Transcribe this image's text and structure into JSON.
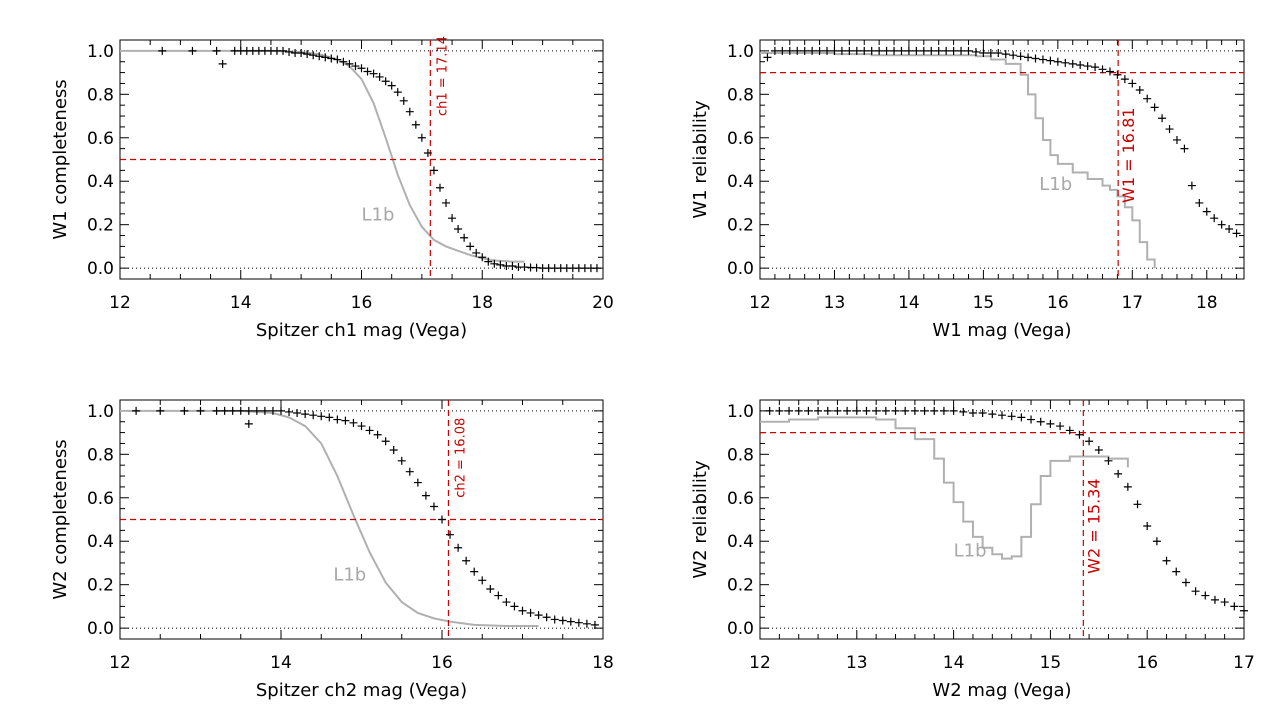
{
  "chart_data": [
    {
      "type": "scatter",
      "panel": "top-left",
      "xlabel": "Spitzer ch1 mag (Vega)",
      "ylabel": "W1 completeness",
      "xlim": [
        12,
        20
      ],
      "ylim": [
        -0.05,
        1.05
      ],
      "xticks": [
        12,
        14,
        16,
        18,
        20
      ],
      "yticks": [
        0.0,
        0.2,
        0.4,
        0.6,
        0.8,
        1.0
      ],
      "ref_lines": [
        0.0,
        1.0
      ],
      "threshold": {
        "axis": "y",
        "value": 0.5
      },
      "cut": {
        "value": 17.14,
        "label": "ch1 = 17.14",
        "label_pos": "top",
        "label_y": 0.7
      },
      "curve_label": {
        "text": "L1b",
        "x": 16.0,
        "y": 0.22
      },
      "curve": {
        "name": "L1b",
        "style": "line",
        "x": [
          12.0,
          14.5,
          15.0,
          15.3,
          15.6,
          15.8,
          16.0,
          16.2,
          16.4,
          16.6,
          16.8,
          17.0,
          17.2,
          17.4,
          17.6,
          17.8,
          18.0,
          18.2,
          18.5,
          18.7
        ],
        "y": [
          1.0,
          1.0,
          0.995,
          0.985,
          0.96,
          0.93,
          0.87,
          0.76,
          0.6,
          0.43,
          0.29,
          0.19,
          0.13,
          0.1,
          0.08,
          0.06,
          0.045,
          0.035,
          0.03,
          0.03
        ]
      },
      "series": [
        {
          "name": "counts",
          "style": "plus",
          "x": [
            12.7,
            13.2,
            13.6,
            13.7,
            13.9,
            14.0,
            14.1,
            14.2,
            14.3,
            14.4,
            14.5,
            14.6,
            14.7,
            14.8,
            14.9,
            15.0,
            15.1,
            15.2,
            15.3,
            15.4,
            15.5,
            15.6,
            15.7,
            15.8,
            15.9,
            16.0,
            16.1,
            16.2,
            16.3,
            16.4,
            16.5,
            16.6,
            16.7,
            16.8,
            16.9,
            17.0,
            17.1,
            17.2,
            17.3,
            17.4,
            17.5,
            17.6,
            17.7,
            17.8,
            17.9,
            18.0,
            18.1,
            18.2,
            18.3,
            18.4,
            18.5,
            18.6,
            18.7,
            18.8,
            18.9,
            19.0,
            19.1,
            19.2,
            19.3,
            19.4,
            19.5,
            19.6,
            19.7,
            19.8,
            19.9
          ],
          "y": [
            1.0,
            1.0,
            1.0,
            0.94,
            1.0,
            1.0,
            1.0,
            1.0,
            1.0,
            1.0,
            1.0,
            1.0,
            1.0,
            0.995,
            0.99,
            0.99,
            0.985,
            0.98,
            0.975,
            0.97,
            0.965,
            0.96,
            0.95,
            0.94,
            0.93,
            0.92,
            0.905,
            0.895,
            0.88,
            0.86,
            0.84,
            0.81,
            0.77,
            0.72,
            0.66,
            0.6,
            0.53,
            0.45,
            0.37,
            0.3,
            0.23,
            0.18,
            0.14,
            0.1,
            0.07,
            0.05,
            0.03,
            0.02,
            0.015,
            0.01,
            0.01,
            0.005,
            0.005,
            0.003,
            0.002,
            0.0,
            0.0,
            0.0,
            0.0,
            0.0,
            0.0,
            0.0,
            0.0,
            0.0,
            0.0
          ]
        }
      ]
    },
    {
      "type": "scatter",
      "panel": "top-right",
      "xlabel": "W1 mag (Vega)",
      "ylabel": "W1 reliability",
      "xlim": [
        12,
        18.5
      ],
      "ylim": [
        -0.05,
        1.05
      ],
      "xticks": [
        12,
        13,
        14,
        15,
        16,
        17,
        18
      ],
      "yticks": [
        0.0,
        0.2,
        0.4,
        0.6,
        0.8,
        1.0
      ],
      "ref_lines": [
        0.0,
        1.0
      ],
      "threshold": {
        "axis": "y",
        "value": 0.9
      },
      "cut": {
        "value": 16.81,
        "label": "W1 = 16.81",
        "label_pos": "bottom",
        "label_y": 0.3
      },
      "curve_label": {
        "text": "L1b",
        "x": 15.75,
        "y": 0.36
      },
      "curve": {
        "name": "L1b",
        "style": "step",
        "x": [
          12.0,
          12.5,
          13.0,
          13.5,
          14.0,
          14.5,
          14.9,
          15.1,
          15.3,
          15.5,
          15.6,
          15.7,
          15.8,
          15.9,
          16.0,
          16.2,
          16.4,
          16.6,
          16.7,
          16.8,
          16.9,
          17.0,
          17.1,
          17.2,
          17.3
        ],
        "y": [
          0.99,
          0.99,
          0.985,
          0.98,
          0.98,
          0.98,
          0.975,
          0.96,
          0.94,
          0.89,
          0.8,
          0.69,
          0.59,
          0.52,
          0.48,
          0.44,
          0.41,
          0.38,
          0.36,
          0.33,
          0.28,
          0.22,
          0.12,
          0.04,
          0.0
        ]
      },
      "series": [
        {
          "name": "counts",
          "style": "plus",
          "x": [
            12.1,
            12.2,
            12.3,
            12.4,
            12.5,
            12.6,
            12.7,
            12.8,
            12.9,
            13.0,
            13.1,
            13.2,
            13.3,
            13.4,
            13.5,
            13.6,
            13.7,
            13.8,
            13.9,
            14.0,
            14.1,
            14.2,
            14.3,
            14.4,
            14.5,
            14.6,
            14.7,
            14.8,
            14.9,
            15.0,
            15.1,
            15.2,
            15.3,
            15.4,
            15.5,
            15.6,
            15.7,
            15.8,
            15.9,
            16.0,
            16.1,
            16.2,
            16.3,
            16.4,
            16.5,
            16.6,
            16.7,
            16.8,
            16.9,
            17.0,
            17.1,
            17.2,
            17.3,
            17.4,
            17.5,
            17.6,
            17.7,
            17.8,
            17.9,
            18.0,
            18.1,
            18.2,
            18.3,
            18.4
          ],
          "y": [
            0.97,
            1.0,
            1.0,
            1.0,
            1.0,
            1.0,
            1.0,
            1.0,
            1.0,
            1.0,
            1.0,
            1.0,
            1.0,
            1.0,
            1.0,
            1.0,
            1.0,
            1.0,
            1.0,
            1.0,
            1.0,
            1.0,
            1.0,
            1.0,
            1.0,
            1.0,
            1.0,
            1.0,
            0.995,
            0.99,
            0.99,
            0.99,
            0.985,
            0.98,
            0.975,
            0.97,
            0.965,
            0.96,
            0.955,
            0.95,
            0.945,
            0.94,
            0.935,
            0.93,
            0.925,
            0.915,
            0.905,
            0.89,
            0.87,
            0.85,
            0.82,
            0.78,
            0.74,
            0.69,
            0.64,
            0.59,
            0.55,
            0.38,
            0.3,
            0.26,
            0.23,
            0.2,
            0.18,
            0.16
          ]
        }
      ]
    },
    {
      "type": "scatter",
      "panel": "bottom-left",
      "xlabel": "Spitzer ch2 mag (Vega)",
      "ylabel": "W2 completeness",
      "xlim": [
        12,
        18
      ],
      "ylim": [
        -0.05,
        1.05
      ],
      "xticks": [
        12,
        14,
        16,
        18
      ],
      "yticks": [
        0.0,
        0.2,
        0.4,
        0.6,
        0.8,
        1.0
      ],
      "ref_lines": [
        0.0,
        1.0
      ],
      "threshold": {
        "axis": "y",
        "value": 0.5
      },
      "cut": {
        "value": 16.08,
        "label": "ch2 = 16.08",
        "label_pos": "top",
        "label_y": 0.6
      },
      "curve_label": {
        "text": "L1b",
        "x": 14.65,
        "y": 0.22
      },
      "curve": {
        "name": "L1b",
        "style": "line",
        "x": [
          12.0,
          13.5,
          13.9,
          14.1,
          14.3,
          14.5,
          14.7,
          14.9,
          15.1,
          15.3,
          15.5,
          15.7,
          15.9,
          16.1,
          16.4,
          16.8,
          17.2
        ],
        "y": [
          1.0,
          1.0,
          0.99,
          0.97,
          0.93,
          0.85,
          0.7,
          0.52,
          0.35,
          0.21,
          0.12,
          0.07,
          0.045,
          0.03,
          0.015,
          0.01,
          0.01
        ]
      },
      "series": [
        {
          "name": "counts",
          "style": "plus",
          "x": [
            12.2,
            12.5,
            12.8,
            13.0,
            13.2,
            13.3,
            13.4,
            13.5,
            13.6,
            13.6,
            13.7,
            13.8,
            13.9,
            14.0,
            14.1,
            14.2,
            14.3,
            14.4,
            14.5,
            14.6,
            14.7,
            14.8,
            14.9,
            15.0,
            15.1,
            15.2,
            15.3,
            15.4,
            15.5,
            15.6,
            15.7,
            15.8,
            15.9,
            16.0,
            16.1,
            16.2,
            16.3,
            16.4,
            16.5,
            16.6,
            16.7,
            16.8,
            16.9,
            17.0,
            17.1,
            17.2,
            17.3,
            17.4,
            17.5,
            17.6,
            17.7,
            17.8,
            17.9
          ],
          "y": [
            1.0,
            1.0,
            1.0,
            1.0,
            1.0,
            1.0,
            1.0,
            1.0,
            1.0,
            0.94,
            1.0,
            1.0,
            1.0,
            1.0,
            0.995,
            0.99,
            0.985,
            0.98,
            0.975,
            0.97,
            0.96,
            0.955,
            0.945,
            0.93,
            0.91,
            0.89,
            0.86,
            0.82,
            0.77,
            0.72,
            0.67,
            0.61,
            0.56,
            0.5,
            0.43,
            0.37,
            0.31,
            0.26,
            0.22,
            0.18,
            0.15,
            0.12,
            0.1,
            0.08,
            0.07,
            0.06,
            0.05,
            0.04,
            0.035,
            0.03,
            0.025,
            0.02,
            0.015
          ]
        }
      ]
    },
    {
      "type": "scatter",
      "panel": "bottom-right",
      "xlabel": "W2 mag (Vega)",
      "ylabel": "W2 reliability",
      "xlim": [
        12,
        17
      ],
      "ylim": [
        -0.05,
        1.05
      ],
      "xticks": [
        12,
        13,
        14,
        15,
        16,
        17
      ],
      "yticks": [
        0.0,
        0.2,
        0.4,
        0.6,
        0.8,
        1.0
      ],
      "ref_lines": [
        0.0,
        1.0
      ],
      "threshold": {
        "axis": "y",
        "value": 0.9
      },
      "cut": {
        "value": 15.34,
        "label": "W2 = 15.34",
        "label_pos": "bottom",
        "label_y": 0.25
      },
      "curve_label": {
        "text": "L1b",
        "x": 14.0,
        "y": 0.33
      },
      "curve": {
        "name": "L1b",
        "style": "step",
        "x": [
          12.0,
          12.3,
          12.6,
          12.9,
          13.2,
          13.4,
          13.6,
          13.8,
          13.9,
          14.0,
          14.1,
          14.2,
          14.3,
          14.4,
          14.5,
          14.6,
          14.7,
          14.8,
          14.9,
          15.0,
          15.2,
          15.4,
          15.6,
          15.8
        ],
        "y": [
          0.95,
          0.96,
          0.97,
          0.97,
          0.96,
          0.92,
          0.87,
          0.78,
          0.67,
          0.58,
          0.49,
          0.42,
          0.37,
          0.34,
          0.32,
          0.33,
          0.42,
          0.57,
          0.7,
          0.77,
          0.79,
          0.79,
          0.78,
          0.74
        ]
      },
      "series": [
        {
          "name": "counts",
          "style": "plus",
          "x": [
            12.1,
            12.2,
            12.3,
            12.4,
            12.5,
            12.6,
            12.7,
            12.8,
            12.9,
            13.0,
            13.1,
            13.2,
            13.3,
            13.4,
            13.5,
            13.6,
            13.7,
            13.8,
            13.9,
            14.0,
            14.1,
            14.2,
            14.3,
            14.4,
            14.5,
            14.6,
            14.7,
            14.8,
            14.9,
            15.0,
            15.1,
            15.2,
            15.3,
            15.4,
            15.5,
            15.6,
            15.7,
            15.8,
            15.9,
            16.0,
            16.1,
            16.2,
            16.3,
            16.4,
            16.5,
            16.6,
            16.7,
            16.8,
            16.9,
            17.0
          ],
          "y": [
            1.0,
            1.0,
            1.0,
            1.0,
            1.0,
            1.0,
            1.0,
            1.0,
            1.0,
            1.0,
            1.0,
            1.0,
            1.0,
            1.0,
            1.0,
            1.0,
            1.0,
            1.0,
            1.0,
            1.0,
            0.995,
            0.99,
            0.99,
            0.985,
            0.98,
            0.975,
            0.97,
            0.96,
            0.95,
            0.94,
            0.93,
            0.91,
            0.89,
            0.86,
            0.82,
            0.77,
            0.71,
            0.65,
            0.57,
            0.47,
            0.4,
            0.31,
            0.26,
            0.21,
            0.17,
            0.15,
            0.13,
            0.12,
            0.1,
            0.08
          ]
        }
      ]
    }
  ]
}
